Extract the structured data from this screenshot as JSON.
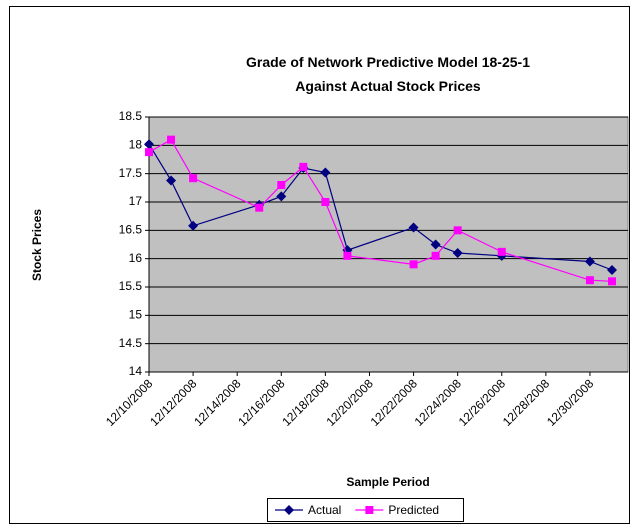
{
  "chart_data": {
    "type": "line",
    "title": "Grade of Network Predictive Model 18-25-1 Against Actual Stock Prices",
    "x_label": "Sample Period",
    "y_label": "Stock Prices",
    "x": [
      "12/10/2008",
      "12/11/2008",
      "12/12/2008",
      "12/15/2008",
      "12/16/2008",
      "12/17/2008",
      "12/18/2008",
      "12/19/2008",
      "12/22/2008",
      "12/23/2008",
      "12/24/2008",
      "12/26/2008",
      "12/30/2008",
      "12/31/2008"
    ],
    "series": [
      {
        "name": "Actual",
        "color": "#000080",
        "marker": "diamond",
        "values": [
          18.02,
          17.38,
          16.58,
          16.95,
          17.1,
          17.6,
          17.52,
          16.15,
          16.55,
          16.25,
          16.1,
          16.05,
          15.95,
          15.8
        ]
      },
      {
        "name": "Predicted",
        "color": "#ff00ff",
        "marker": "square",
        "values": [
          17.88,
          18.1,
          17.42,
          16.9,
          17.3,
          17.62,
          17.0,
          16.05,
          15.9,
          16.05,
          16.5,
          16.12,
          15.62,
          15.6
        ]
      }
    ],
    "xlim": [
      "12/10/2008",
      "12/31/2008"
    ],
    "xticks": [
      "12/10/2008",
      "12/12/2008",
      "12/14/2008",
      "12/16/2008",
      "12/18/2008",
      "12/20/2008",
      "12/22/2008",
      "12/24/2008",
      "12/26/2008",
      "12/28/2008",
      "12/30/2008"
    ],
    "ylim": [
      14,
      18.5
    ],
    "yticks": [
      14,
      14.5,
      15,
      15.5,
      16,
      16.5,
      17,
      17.5,
      18,
      18.5
    ],
    "grid": true,
    "plot_background": "#c0c0c0",
    "legend": "bottom"
  }
}
